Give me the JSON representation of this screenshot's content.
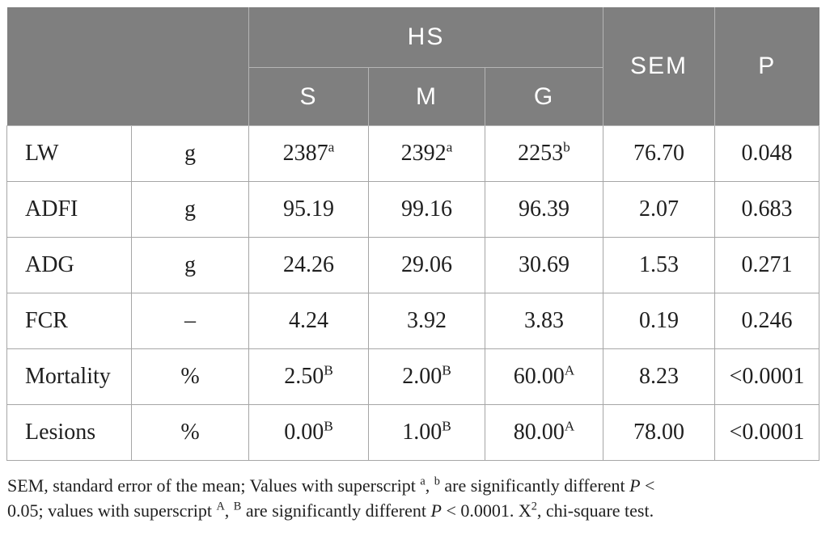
{
  "colors": {
    "header_background": "#7f7f7f",
    "header_text": "#ffffff",
    "header_divider": "#b5b5b5",
    "body_border": "#a6a6a6",
    "body_text": "#1f1f1f",
    "page_background": "#ffffff"
  },
  "table": {
    "header": {
      "group_label": "HS",
      "sub_columns": [
        "S",
        "M",
        "G"
      ],
      "sem_label": "SEM",
      "p_label": "P"
    },
    "rows": [
      {
        "name": "LW",
        "unit": "g",
        "values": [
          {
            "text": "2387",
            "sup": "a"
          },
          {
            "text": "2392",
            "sup": "a"
          },
          {
            "text": "2253",
            "sup": "b"
          }
        ],
        "sem": "76.70",
        "p": "0.048"
      },
      {
        "name": "ADFI",
        "unit": "g",
        "values": [
          {
            "text": "95.19"
          },
          {
            "text": "99.16"
          },
          {
            "text": "96.39"
          }
        ],
        "sem": "2.07",
        "p": "0.683"
      },
      {
        "name": "ADG",
        "unit": "g",
        "values": [
          {
            "text": "24.26"
          },
          {
            "text": "29.06"
          },
          {
            "text": "30.69"
          }
        ],
        "sem": "1.53",
        "p": "0.271"
      },
      {
        "name": "FCR",
        "unit": "–",
        "values": [
          {
            "text": "4.24"
          },
          {
            "text": "3.92"
          },
          {
            "text": "3.83"
          }
        ],
        "sem": "0.19",
        "p": "0.246"
      },
      {
        "name": "Mortality",
        "unit": "%",
        "values": [
          {
            "text": "2.50",
            "sup": "B"
          },
          {
            "text": "2.00",
            "sup": "B"
          },
          {
            "text": "60.00",
            "sup": "A"
          }
        ],
        "sem": "8.23",
        "p": "<0.0001"
      },
      {
        "name": "Lesions",
        "unit": "%",
        "values": [
          {
            "text": "0.00",
            "sup": "B"
          },
          {
            "text": "1.00",
            "sup": "B"
          },
          {
            "text": "80.00",
            "sup": "A"
          }
        ],
        "sem": "78.00",
        "p": "<0.0001"
      }
    ]
  },
  "footnote": {
    "segments": [
      {
        "t": "text",
        "v": "SEM, standard error of the mean; Values with superscript "
      },
      {
        "t": "sup",
        "v": "a"
      },
      {
        "t": "text",
        "v": ", "
      },
      {
        "t": "sup",
        "v": "b"
      },
      {
        "t": "text",
        "v": " are significantly different "
      },
      {
        "t": "i",
        "v": "P"
      },
      {
        "t": "text",
        "v": " <"
      },
      {
        "t": "br"
      },
      {
        "t": "text",
        "v": "0.05; values with superscript "
      },
      {
        "t": "sup",
        "v": "A"
      },
      {
        "t": "text",
        "v": ", "
      },
      {
        "t": "sup",
        "v": "B"
      },
      {
        "t": "text",
        "v": " are significantly different "
      },
      {
        "t": "i",
        "v": "P"
      },
      {
        "t": "text",
        "v": " < 0.0001. X"
      },
      {
        "t": "sup",
        "v": "2"
      },
      {
        "t": "text",
        "v": ", chi-square test."
      }
    ]
  }
}
